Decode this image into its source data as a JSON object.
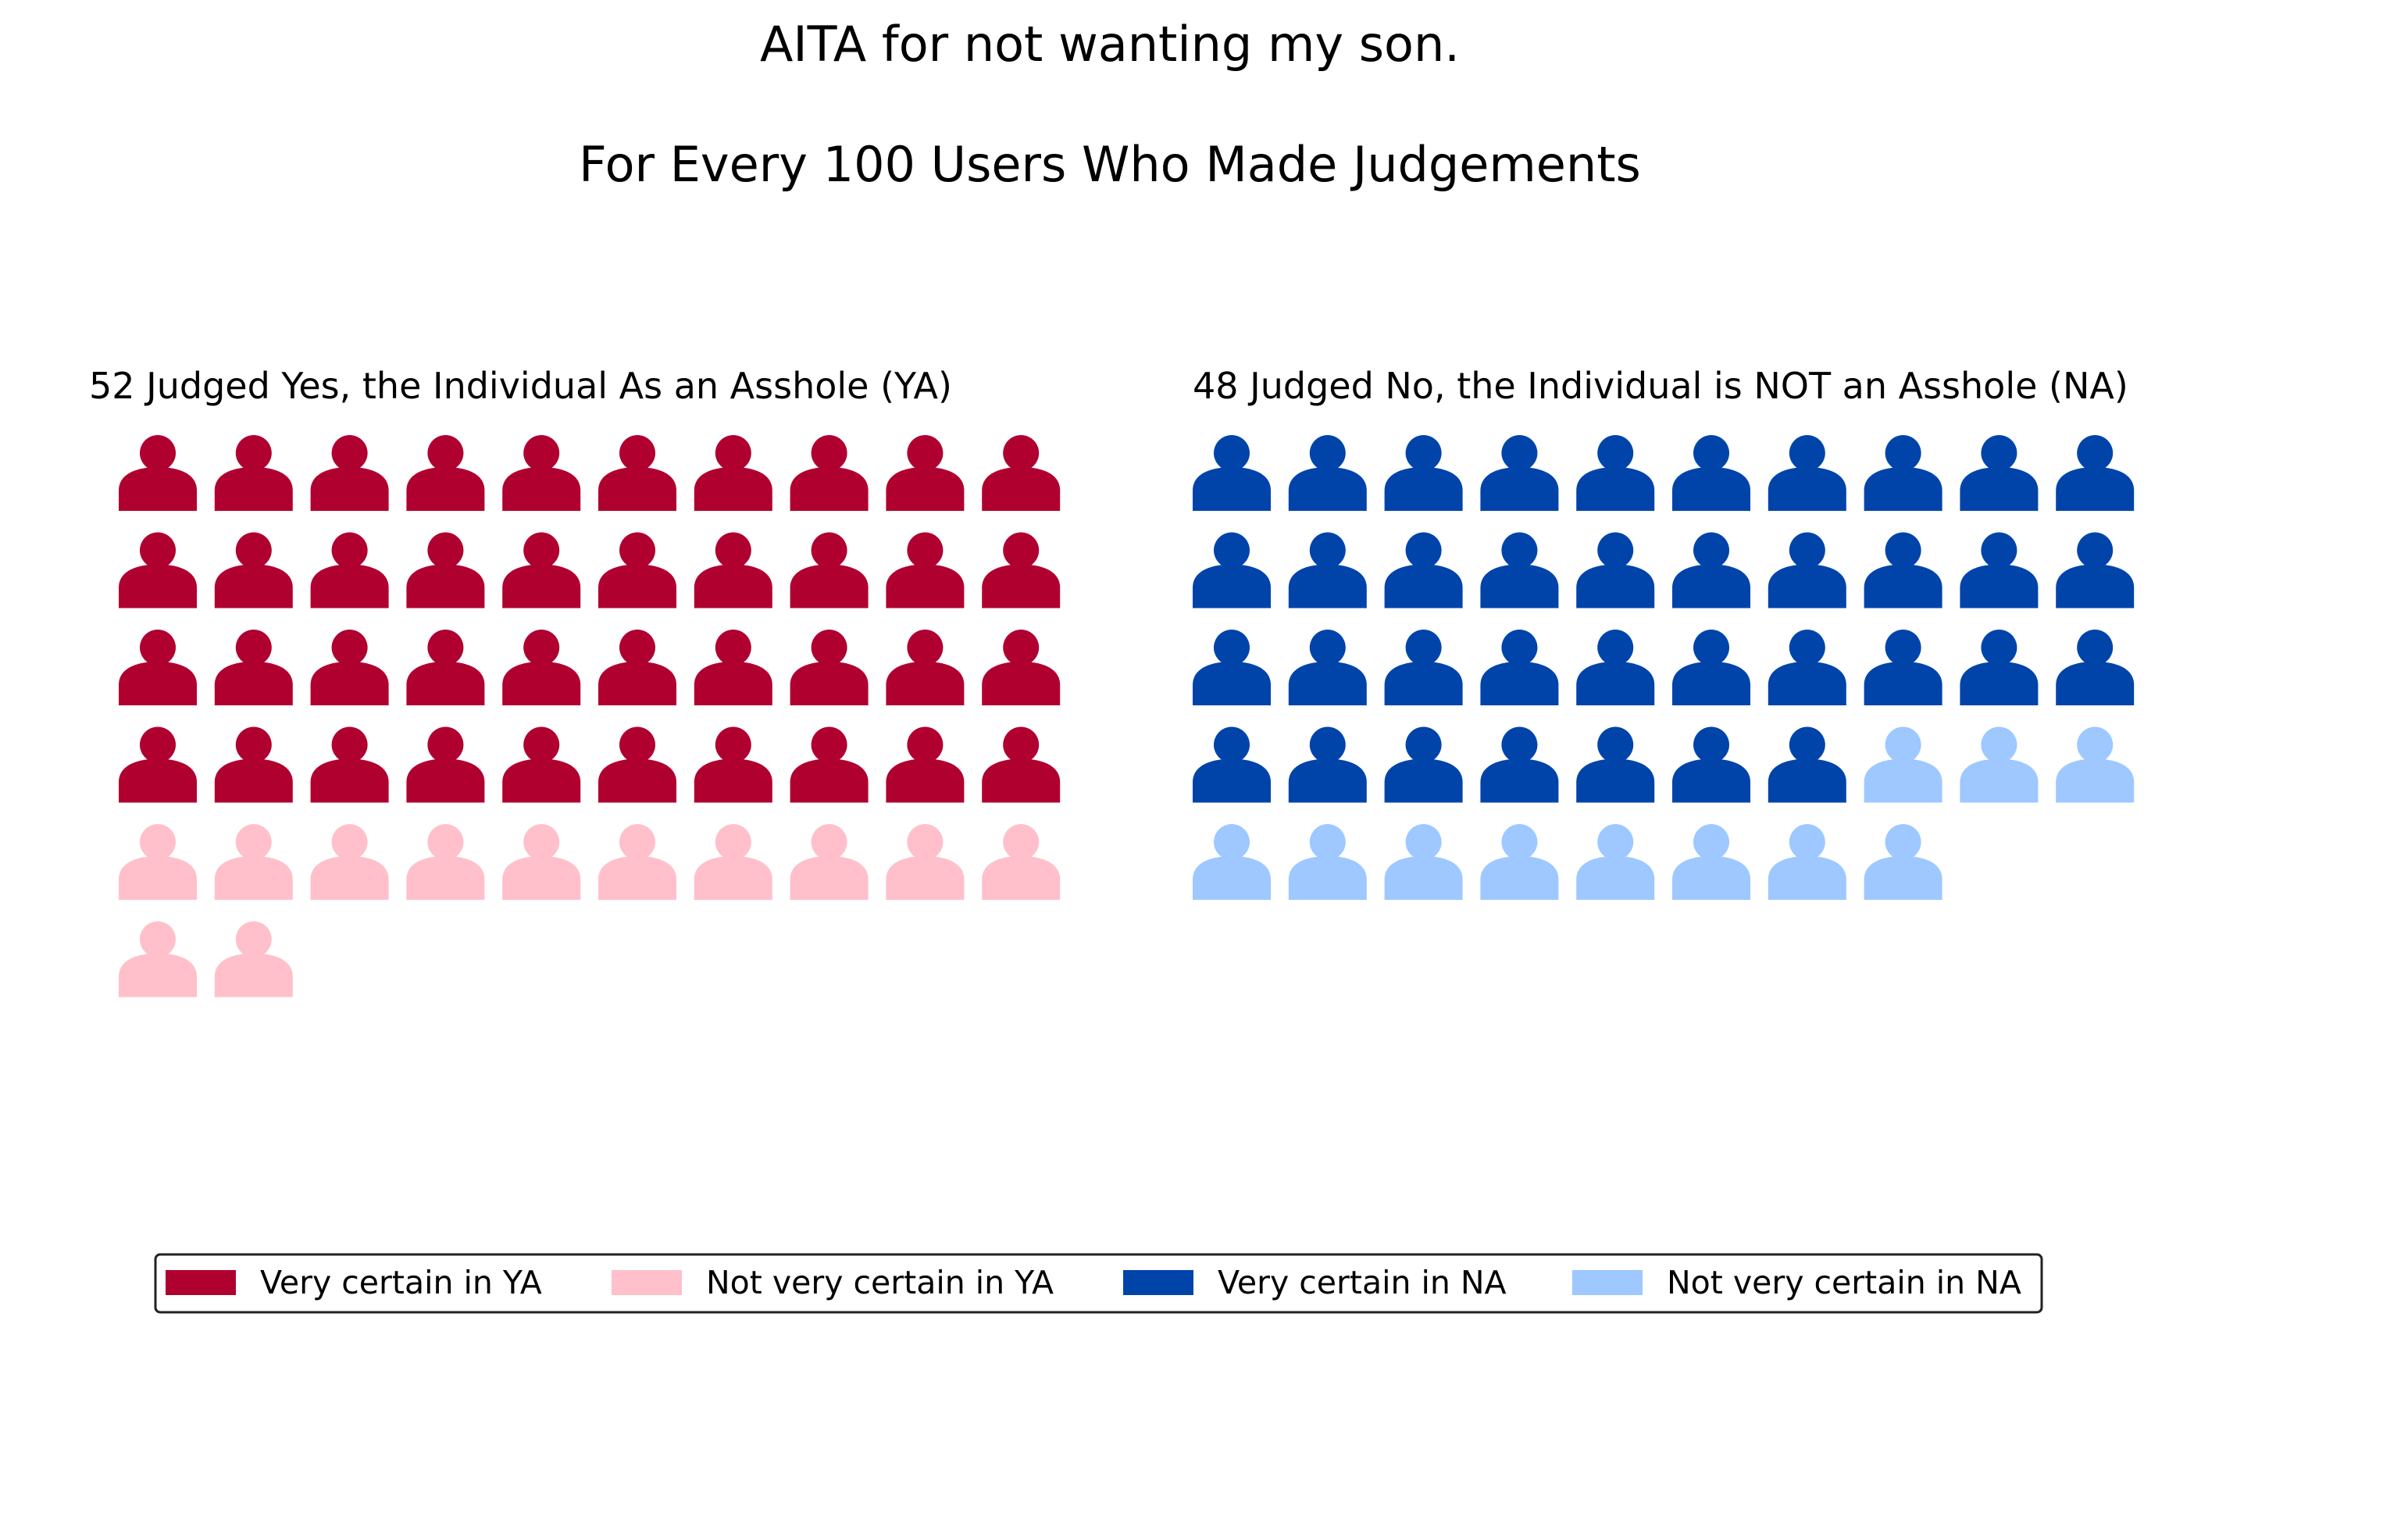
{
  "chart_data": {
    "type": "pictogram",
    "title": "AITA for not wanting my son.",
    "subtitle": "For Every 100 Users Who Made Judgements",
    "unit_icon": "person-icon",
    "icons_per_row": 10,
    "panels": [
      {
        "title": "52 Judged Yes, the Individual As an Asshole (YA)",
        "total": 52,
        "segments": [
          {
            "name": "Very certain in YA",
            "value": 40,
            "color": "#b00030"
          },
          {
            "name": "Not very certain in YA",
            "value": 12,
            "color": "#ffc0cb"
          }
        ]
      },
      {
        "title": "48 Judged No, the Individual is NOT an Asshole (NA)",
        "total": 48,
        "segments": [
          {
            "name": "Very certain in NA",
            "value": 37,
            "color": "#0044aa"
          },
          {
            "name": "Not very certain in NA",
            "value": 11,
            "color": "#9ec8ff"
          }
        ]
      }
    ],
    "legend": {
      "placement": "bottom",
      "entries": [
        {
          "label": "Very certain in YA",
          "color": "#b00030"
        },
        {
          "label": "Not very certain in YA",
          "color": "#ffc0cb"
        },
        {
          "label": "Very certain in NA",
          "color": "#0044aa"
        },
        {
          "label": "Not very certain in NA",
          "color": "#9ec8ff"
        }
      ]
    }
  }
}
